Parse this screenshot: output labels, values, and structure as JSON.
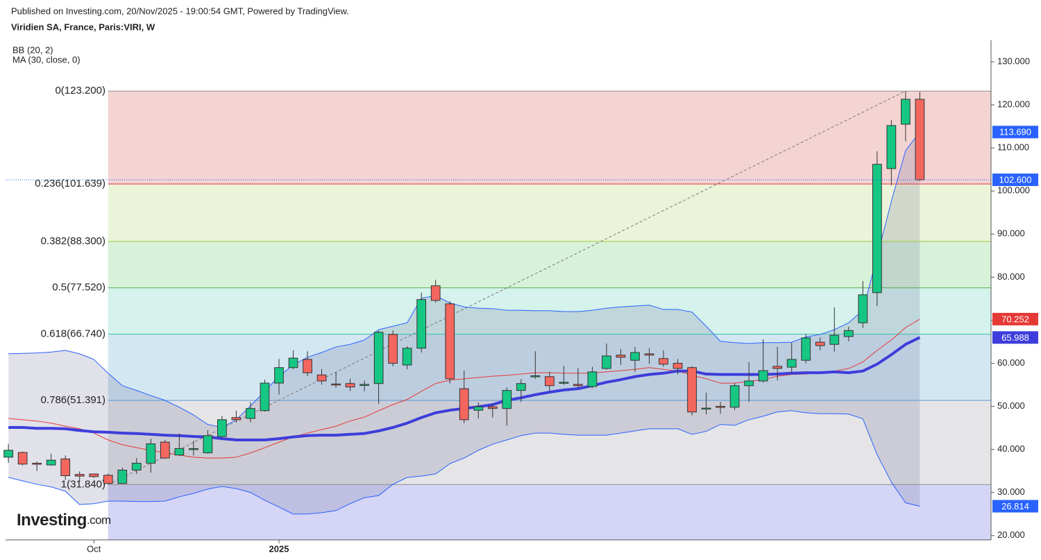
{
  "header": {
    "published": "Published on Investing.com, 20/Nov/2025 - 19:00:54 GMT, Powered by TradingView.",
    "symbol": "Viridien SA, France, Paris:VIRI, W"
  },
  "logo": {
    "brand": "Investing",
    "suffix": ".com"
  },
  "chart_data": {
    "type": "candlestick",
    "indicators": [
      "BB (20, 2)",
      "MA (30, close, 0)"
    ],
    "categories": [
      null,
      null,
      null,
      null,
      null,
      null,
      "Oct",
      null,
      null,
      null,
      null,
      null,
      null,
      null,
      null,
      null,
      null,
      null,
      null,
      "2025",
      null,
      null,
      null,
      null,
      null,
      null,
      null,
      null,
      null,
      null,
      null,
      null,
      null,
      null,
      null,
      null,
      null,
      null,
      null,
      null,
      null,
      null,
      null,
      null,
      null,
      null,
      null,
      null,
      null,
      null,
      null,
      null,
      null,
      null,
      null,
      null,
      null,
      null,
      null,
      null,
      null,
      null,
      null,
      null,
      null
    ],
    "xlim": [
      -0.2,
      69
    ],
    "ylim": [
      19,
      135
    ],
    "yticks": [
      {
        "value": 20,
        "label": "20.000"
      },
      {
        "value": 30,
        "label": "30.000"
      },
      {
        "value": 40,
        "label": "40.000"
      },
      {
        "value": 50,
        "label": "50.000"
      },
      {
        "value": 60,
        "label": "60.000"
      },
      {
        "value": 70,
        "label": "70.000"
      },
      {
        "value": 80,
        "label": "80.000"
      },
      {
        "value": 90,
        "label": "90.000"
      },
      {
        "value": 100,
        "label": "100.000"
      },
      {
        "value": 110,
        "label": "110.000"
      },
      {
        "value": 120,
        "label": "120.000"
      },
      {
        "value": 130,
        "label": "130.000"
      }
    ],
    "up_color": "#16c784",
    "down_color": "#f4675f",
    "last_color": "#2962ff",
    "open": [
      38.2,
      39.3,
      36.8,
      36.4,
      37.8,
      34.2,
      34.3,
      34.0,
      32.1,
      35.2,
      36.8,
      41.7,
      38.7,
      40.0,
      39.2,
      43.0,
      47.4,
      47.2,
      49.0,
      55.4,
      59.0,
      60.9,
      57.3,
      55.2,
      55.3,
      55.0,
      55.3,
      66.7,
      59.6,
      63.5,
      78.0,
      73.8,
      54.1,
      49.1,
      49.9,
      49.5,
      53.7,
      56.9,
      56.9,
      55.5,
      55.1,
      54.6,
      58.8,
      61.9,
      60.7,
      62.2,
      61.1,
      60.0,
      59.0,
      49.5,
      50.0,
      49.8,
      54.8,
      55.9,
      59.3,
      59.1,
      60.7,
      64.9,
      64.4,
      66.2,
      69.4,
      76.4,
      105.2,
      115.5,
      121.3
    ],
    "high": [
      41.3,
      39.5,
      37.2,
      39.0,
      38.6,
      34.9,
      34.4,
      34.4,
      35.8,
      38.0,
      42.5,
      42.2,
      43.7,
      42.0,
      44.5,
      47.8,
      49.0,
      51.0,
      56.2,
      61.0,
      63.0,
      62.8,
      58.7,
      58.0,
      56.4,
      56.0,
      67.6,
      67.6,
      64.0,
      76.4,
      79.4,
      74.4,
      58.3,
      50.9,
      50.5,
      54.4,
      56.3,
      62.8,
      58.0,
      59.4,
      58.9,
      59.2,
      64.6,
      63.3,
      63.8,
      63.5,
      63.0,
      61.0,
      59.3,
      53.2,
      51.0,
      55.4,
      60.3,
      65.6,
      63.8,
      64.8,
      66.8,
      66.0,
      73.0,
      68.5,
      79.1,
      109.2,
      116.5,
      123.2,
      123.0
    ],
    "low": [
      36.9,
      36.3,
      35.0,
      36.2,
      32.9,
      32.5,
      33.4,
      32.0,
      32.0,
      34.3,
      34.6,
      37.8,
      38.5,
      38.6,
      39.0,
      42.8,
      46.3,
      46.3,
      48.8,
      52.7,
      58.6,
      57.0,
      55.0,
      54.3,
      53.6,
      53.5,
      50.6,
      59.3,
      58.6,
      62.5,
      74.1,
      55.3,
      46.1,
      47.2,
      47.4,
      45.5,
      51.0,
      56.4,
      53.5,
      55.0,
      54.3,
      54.2,
      58.5,
      59.6,
      58.0,
      59.9,
      59.2,
      57.4,
      47.9,
      48.1,
      48.3,
      49.1,
      51.0,
      55.5,
      56.0,
      57.8,
      60.0,
      63.0,
      62.7,
      65.1,
      68.2,
      73.3,
      101.3,
      111.5,
      102.3
    ],
    "close": [
      39.8,
      36.6,
      36.6,
      37.5,
      33.9,
      33.8,
      33.7,
      32.1,
      35.2,
      36.8,
      41.3,
      38.0,
      40.2,
      40.2,
      43.2,
      46.9,
      46.9,
      49.5,
      55.4,
      59.0,
      61.2,
      57.8,
      55.9,
      55.0,
      54.5,
      55.1,
      67.2,
      60.0,
      63.5,
      74.8,
      74.6,
      56.4,
      46.9,
      49.9,
      49.5,
      53.7,
      55.3,
      57.1,
      54.8,
      55.6,
      54.8,
      58.0,
      61.7,
      61.4,
      62.5,
      61.9,
      59.8,
      58.8,
      48.7,
      49.6,
      49.8,
      54.8,
      55.9,
      58.3,
      58.8,
      60.9,
      65.9,
      64.1,
      66.5,
      67.6,
      75.9,
      106.2,
      115.2,
      121.3,
      102.6
    ],
    "last_label": "102.600",
    "bb_fill": "rgba(105,105,150,0.2)",
    "series": [
      {
        "color": "#e53935",
        "width": 1,
        "last_label": "70.252",
        "values": [
          47.2,
          46.9,
          46.6,
          46.1,
          45.4,
          44.8,
          43.8,
          42.2,
          41.1,
          40.4,
          39.8,
          39.2,
          38.7,
          38.2,
          38.0,
          38.0,
          38.2,
          39.2,
          40.4,
          41.7,
          42.9,
          43.8,
          44.6,
          45.4,
          46.6,
          47.5,
          49.0,
          50.4,
          51.6,
          53.5,
          55.3,
          56.1,
          56.4,
          56.7,
          57.0,
          57.2,
          57.5,
          57.8,
          57.8,
          57.7,
          57.7,
          57.7,
          58.0,
          58.3,
          58.6,
          59.0,
          58.6,
          58.2,
          57.2,
          56.4,
          55.4,
          55.4,
          55.8,
          56.2,
          57.0,
          57.4,
          57.5,
          57.8,
          58.2,
          58.8,
          60.3,
          63.0,
          65.4,
          68.3,
          70.252
        ]
      },
      {
        "color": "#2962ff",
        "width": 1,
        "last_label": "113.690",
        "values": [
          62.2,
          62.3,
          62.4,
          62.6,
          63.0,
          62.2,
          60.9,
          57.7,
          54.8,
          53.7,
          52.5,
          51.4,
          49.8,
          48.0,
          45.8,
          45.1,
          46.9,
          50.1,
          53.5,
          57.0,
          59.6,
          61.4,
          62.5,
          63.8,
          64.4,
          65.4,
          67.8,
          68.6,
          69.4,
          75.1,
          75.7,
          74.0,
          73.1,
          72.8,
          72.7,
          72.3,
          72.3,
          72.2,
          72.2,
          72.0,
          72.0,
          72.3,
          72.8,
          73.1,
          73.3,
          73.5,
          72.5,
          72.5,
          71.9,
          68.6,
          65.1,
          64.8,
          64.6,
          64.8,
          64.8,
          64.9,
          66.1,
          66.7,
          67.8,
          69.4,
          72.3,
          84.7,
          97.6,
          109.4,
          113.69
        ]
      },
      {
        "color": "#2962ff",
        "width": 1,
        "last_label": "26.814",
        "values": [
          33.5,
          32.7,
          31.9,
          31.3,
          30.3,
          27.2,
          27.4,
          28.0,
          28.0,
          27.9,
          27.9,
          28.0,
          29.0,
          29.8,
          30.8,
          31.4,
          30.9,
          30.0,
          28.2,
          26.6,
          25.0,
          25.0,
          25.3,
          25.8,
          27.4,
          28.8,
          29.3,
          31.9,
          33.5,
          33.8,
          34.3,
          36.7,
          38.0,
          39.8,
          41.2,
          42.2,
          43.2,
          43.8,
          43.8,
          43.5,
          43.3,
          43.3,
          43.3,
          43.8,
          44.3,
          44.8,
          44.8,
          44.8,
          43.5,
          44.2,
          45.8,
          45.6,
          46.9,
          47.7,
          48.7,
          49.0,
          48.5,
          48.3,
          48.3,
          48.2,
          47.1,
          38.8,
          32.4,
          27.6,
          26.814
        ]
      },
      {
        "color": "#3d3ddb",
        "width": 4,
        "last_label": "65.988",
        "values": [
          45.1,
          45.1,
          44.9,
          44.9,
          44.8,
          44.4,
          44.1,
          44.0,
          43.8,
          43.7,
          43.5,
          43.3,
          43.2,
          43.0,
          42.9,
          42.5,
          42.2,
          42.2,
          42.2,
          42.5,
          42.9,
          43.2,
          43.3,
          43.3,
          43.5,
          43.7,
          44.3,
          45.1,
          46.1,
          47.4,
          48.5,
          49.1,
          49.5,
          49.9,
          50.4,
          51.4,
          52.0,
          52.7,
          53.3,
          53.8,
          54.1,
          54.8,
          55.6,
          56.2,
          56.9,
          57.4,
          57.7,
          58.2,
          58.2,
          57.5,
          57.4,
          57.4,
          57.4,
          57.4,
          57.5,
          57.7,
          57.8,
          57.8,
          58.0,
          57.8,
          58.2,
          59.8,
          62.0,
          64.4,
          65.988
        ]
      }
    ],
    "fib": {
      "from": 7,
      "to": 63,
      "levels": [
        {
          "label": "0(123.200)",
          "value": 123.2,
          "color": "#8c8c8c",
          "zone": "#f3d4d3"
        },
        {
          "label": "0.236(101.639)",
          "value": 101.639,
          "color": "#e0393e",
          "zone": "#ebf4d9"
        },
        {
          "label": "0.382(88.300)",
          "value": 88.3,
          "color": "#9bcc3a",
          "zone": "#d8f2da"
        },
        {
          "label": "0.5(77.520)",
          "value": 77.52,
          "color": "#4caf50",
          "zone": "#d5f2ec"
        },
        {
          "label": "0.618(66.740)",
          "value": 66.74,
          "color": "#2fc2a4",
          "zone": "#d3e7f3"
        },
        {
          "label": "0.786(51.391)",
          "value": 51.391,
          "color": "#5a96d2",
          "zone": "#e5e5e7"
        },
        {
          "label": "1(31.840)",
          "value": 31.84,
          "color": "#8c8c8c",
          "zone": "#d5d5f6"
        }
      ]
    }
  }
}
